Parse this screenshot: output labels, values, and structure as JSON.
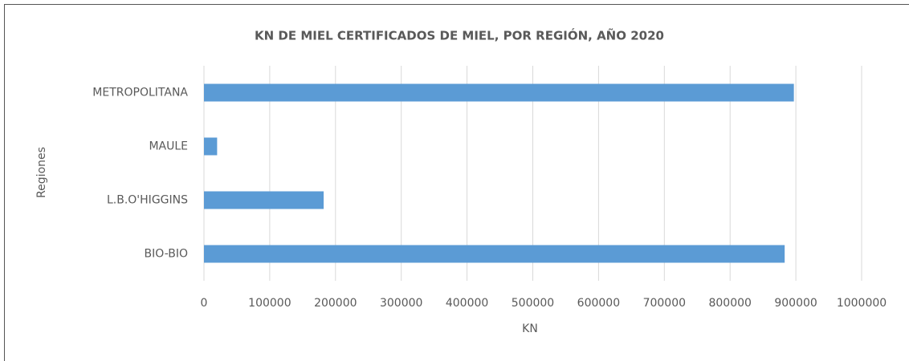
{
  "chart_data": {
    "type": "hbar",
    "title": "KN DE MIEL CERTIFICADOS  DE MIEL, POR REGIÓN, AÑO 2020",
    "x_label": "KN",
    "y_label": "Regiones",
    "categories": [
      "METROPOLITANA",
      "MAULE",
      "L.B.O'HIGGINS",
      "BIO-BIO"
    ],
    "values": [
      897000,
      20000,
      182000,
      883000
    ],
    "color": "#5b9bd5",
    "xlim": [
      0,
      1000000
    ],
    "xticks": [
      0,
      100000,
      200000,
      300000,
      400000,
      500000,
      600000,
      700000,
      800000,
      900000,
      1000000
    ],
    "grid": true
  }
}
